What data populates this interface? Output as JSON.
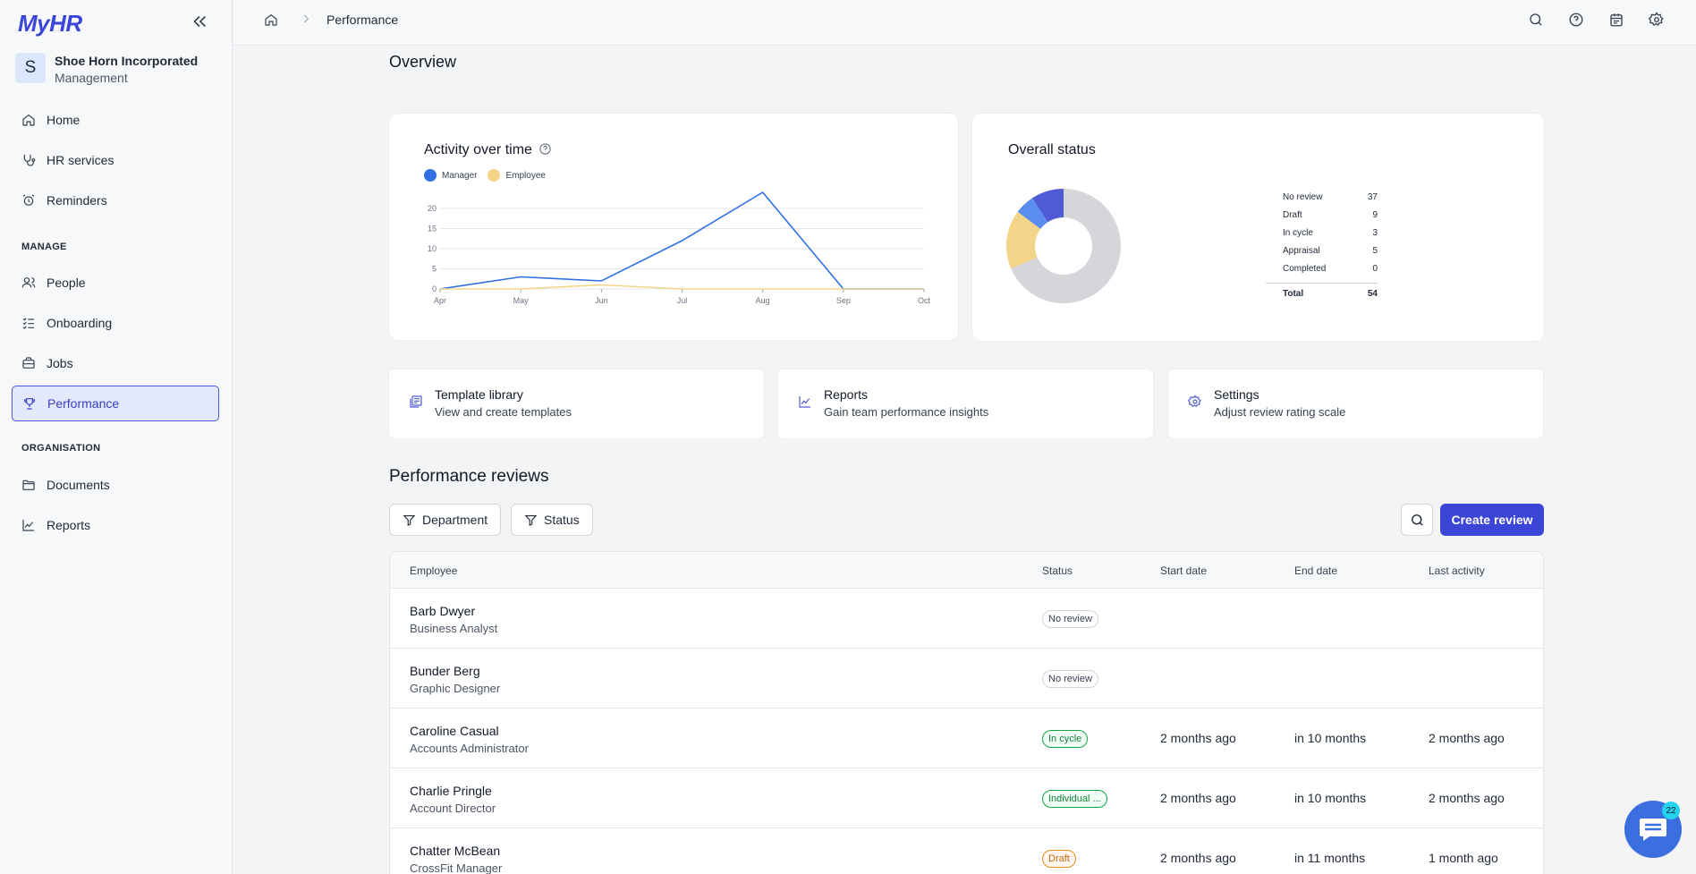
{
  "app": {
    "logo": "MyHR"
  },
  "company": {
    "initial": "S",
    "name": "Shoe Horn Incorporated",
    "role": "Management"
  },
  "sidebar": {
    "items": [
      {
        "label": "Home",
        "icon": "home-icon"
      },
      {
        "label": "HR services",
        "icon": "stethoscope-icon"
      },
      {
        "label": "Reminders",
        "icon": "alarm-clock-icon"
      }
    ],
    "manage_header": "MANAGE",
    "manage_items": [
      {
        "label": "People",
        "icon": "people-icon"
      },
      {
        "label": "Onboarding",
        "icon": "checklist-icon"
      },
      {
        "label": "Jobs",
        "icon": "briefcase-icon"
      },
      {
        "label": "Performance",
        "icon": "trophy-icon",
        "active": true
      }
    ],
    "org_header": "ORGANISATION",
    "org_items": [
      {
        "label": "Documents",
        "icon": "folder-icon"
      },
      {
        "label": "Reports",
        "icon": "chart-line-icon"
      }
    ]
  },
  "topbar": {
    "breadcrumb_title": "Performance"
  },
  "overview": {
    "title": "Overview"
  },
  "activity_card": {
    "title": "Activity over time",
    "legend_manager": "Manager",
    "legend_employee": "Employee"
  },
  "status_card": {
    "title": "Overall status",
    "rows": [
      {
        "label": "No review",
        "value": "37"
      },
      {
        "label": "Draft",
        "value": "9"
      },
      {
        "label": "In cycle",
        "value": "3"
      },
      {
        "label": "Appraisal",
        "value": "5"
      },
      {
        "label": "Completed",
        "value": "0"
      }
    ],
    "total_label": "Total",
    "total_value": "54"
  },
  "chart_data": [
    {
      "type": "line",
      "title": "Activity over time",
      "x": [
        "Apr",
        "May",
        "Jun",
        "Jul",
        "Aug",
        "Sep",
        "Oct"
      ],
      "ylim": [
        0,
        20
      ],
      "yticks": [
        "0",
        "5",
        "10",
        "15",
        "20"
      ],
      "grid": true,
      "legend": "top-left",
      "series": [
        {
          "name": "Manager",
          "color": "#2f6fe4",
          "values": [
            0,
            3,
            2,
            12,
            24,
            0,
            0
          ]
        },
        {
          "name": "Employee",
          "color": "#f3d58a",
          "values": [
            0,
            0,
            1,
            0,
            0,
            0,
            0
          ]
        }
      ]
    },
    {
      "type": "pie",
      "title": "Overall status",
      "categories": [
        "No review",
        "Draft",
        "In cycle",
        "Appraisal",
        "Completed"
      ],
      "values": [
        37,
        9,
        3,
        5,
        0
      ],
      "colors": [
        "#d4d6da",
        "#f3d58a",
        "#5b8def",
        "#4f5bd5",
        "#22c55e"
      ]
    }
  ],
  "quick_links": [
    {
      "title": "Template library",
      "subtitle": "View and create templates",
      "icon": "template-library-icon"
    },
    {
      "title": "Reports",
      "subtitle": "Gain team performance insights",
      "icon": "chart-line-icon"
    },
    {
      "title": "Settings",
      "subtitle": "Adjust review rating scale",
      "icon": "gear-icon"
    }
  ],
  "reviews": {
    "title": "Performance reviews",
    "filter_department": "Department",
    "filter_status": "Status",
    "create_label": "Create review",
    "columns": [
      "Employee",
      "Status",
      "Start date",
      "End date",
      "Last activity"
    ],
    "rows": [
      {
        "name": "Barb Dwyer",
        "role": "Business Analyst",
        "status": "No review",
        "status_style": "grey",
        "start": "",
        "end": "",
        "last": ""
      },
      {
        "name": "Bunder Berg",
        "role": "Graphic Designer",
        "status": "No review",
        "status_style": "grey",
        "start": "",
        "end": "",
        "last": ""
      },
      {
        "name": "Caroline Casual",
        "role": "Accounts Administrator",
        "status": "In cycle",
        "status_style": "green",
        "start": "2 months ago",
        "end": "in 10 months",
        "last": "2 months ago"
      },
      {
        "name": "Charlie Pringle",
        "role": "Account Director",
        "status": "Individual ...",
        "status_style": "green",
        "start": "2 months ago",
        "end": "in 10 months",
        "last": "2 months ago"
      },
      {
        "name": "Chatter McBean",
        "role": "CrossFit Manager",
        "status": "Draft",
        "status_style": "orange",
        "start": "2 months ago",
        "end": "in 11 months",
        "last": "1 month ago"
      }
    ]
  },
  "chat": {
    "badge_count": "22"
  }
}
